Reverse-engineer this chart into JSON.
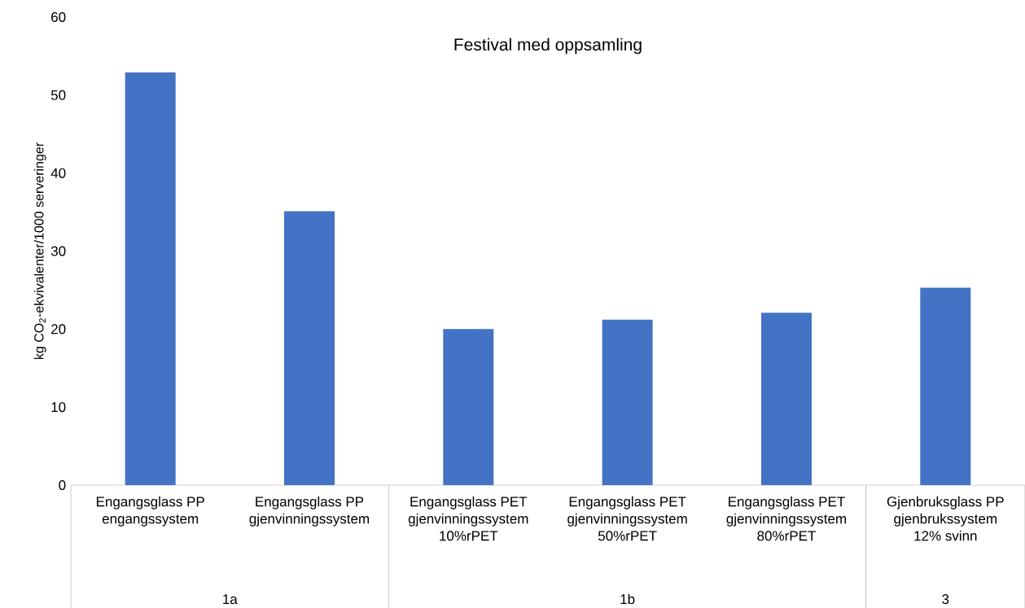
{
  "chart_data": {
    "type": "bar",
    "title": "Festival med oppsamling",
    "ylabel": "kg CO$_{2}$-ekvivalenter/1000 serveringer",
    "categories": [
      "Engangsglass PP engangssystem",
      "Engangsglass PP gjenvinningssystem",
      "Engangsglass PET gjenvinningssystem 10%rPET",
      "Engangsglass PET gjenvinningssystem 50%rPET",
      "Engangsglass PET gjenvinningssystem 80%rPET",
      "Gjenbruksglass PP gjenbrukssystem 12% svinn"
    ],
    "values": [
      52.9,
      35.1,
      20.0,
      21.2,
      22.1,
      25.3
    ],
    "color": "#4472c4",
    "ylim": [
      0,
      60
    ],
    "yticks": [
      0,
      10,
      20,
      30,
      40,
      50,
      60
    ],
    "annotations": [
      "1a",
      "1b",
      "3"
    ]
  }
}
